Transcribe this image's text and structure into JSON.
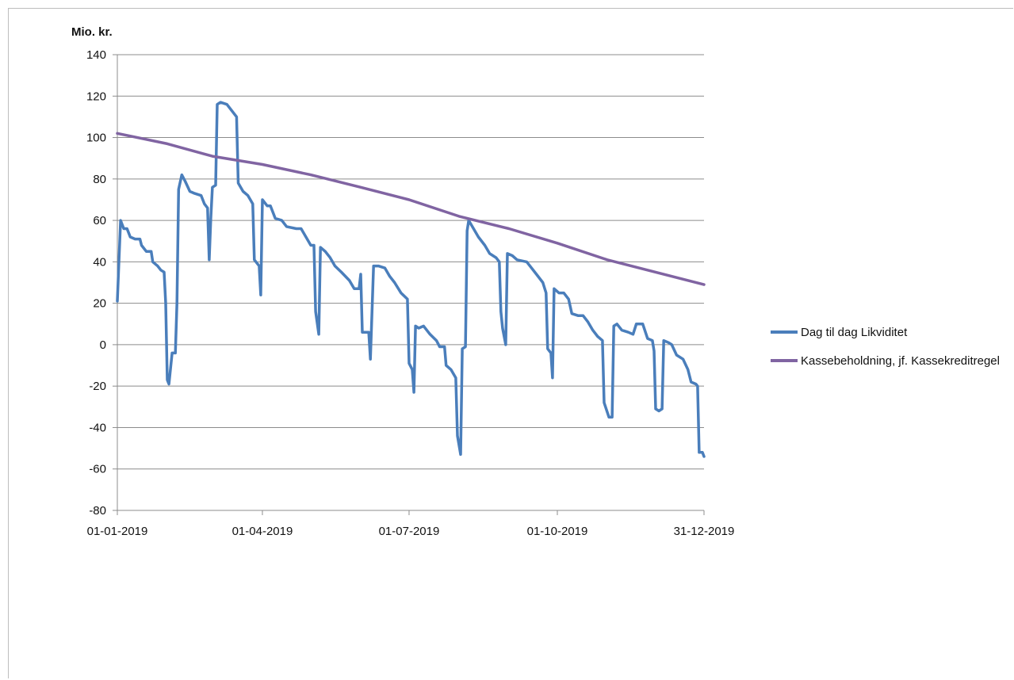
{
  "chart_data": {
    "type": "line",
    "title": "",
    "ylabel": "Mio. kr.",
    "xlabel": "",
    "ylim": [
      -80,
      140
    ],
    "yticks": [
      -80,
      -60,
      -40,
      -20,
      0,
      20,
      40,
      60,
      80,
      100,
      120,
      140
    ],
    "xlim": [
      "2019-01-01",
      "2019-12-31"
    ],
    "xticks": [
      {
        "date": "2019-01-01",
        "label": "01-01-2019"
      },
      {
        "date": "2019-04-01",
        "label": "01-04-2019"
      },
      {
        "date": "2019-07-01",
        "label": "01-07-2019"
      },
      {
        "date": "2019-10-01",
        "label": "01-10-2019"
      },
      {
        "date": "2019-12-31",
        "label": "31-12-2019"
      }
    ],
    "grid": "horizontal",
    "legend_position": "right",
    "series": [
      {
        "name": "Dag til dag Likviditet",
        "color": "#4a7ebb",
        "points": [
          [
            "2019-01-01",
            21
          ],
          [
            "2019-01-03",
            60
          ],
          [
            "2019-01-05",
            56
          ],
          [
            "2019-01-07",
            56
          ],
          [
            "2019-01-09",
            52
          ],
          [
            "2019-01-12",
            51
          ],
          [
            "2019-01-15",
            51
          ],
          [
            "2019-01-16",
            48
          ],
          [
            "2019-01-19",
            45
          ],
          [
            "2019-01-22",
            45
          ],
          [
            "2019-01-23",
            40
          ],
          [
            "2019-01-26",
            38
          ],
          [
            "2019-01-28",
            36
          ],
          [
            "2019-01-30",
            35
          ],
          [
            "2019-01-31",
            20
          ],
          [
            "2019-02-01",
            -17
          ],
          [
            "2019-02-02",
            -19
          ],
          [
            "2019-02-04",
            -4
          ],
          [
            "2019-02-06",
            -4
          ],
          [
            "2019-02-07",
            20
          ],
          [
            "2019-02-08",
            75
          ],
          [
            "2019-02-10",
            82
          ],
          [
            "2019-02-12",
            79
          ],
          [
            "2019-02-15",
            74
          ],
          [
            "2019-02-18",
            73
          ],
          [
            "2019-02-22",
            72
          ],
          [
            "2019-02-24",
            68
          ],
          [
            "2019-02-26",
            66
          ],
          [
            "2019-02-27",
            41
          ],
          [
            "2019-02-28",
            61
          ],
          [
            "2019-03-01",
            76
          ],
          [
            "2019-03-03",
            77
          ],
          [
            "2019-03-04",
            116
          ],
          [
            "2019-03-06",
            117
          ],
          [
            "2019-03-10",
            116
          ],
          [
            "2019-03-13",
            113
          ],
          [
            "2019-03-16",
            110
          ],
          [
            "2019-03-17",
            78
          ],
          [
            "2019-03-20",
            74
          ],
          [
            "2019-03-23",
            72
          ],
          [
            "2019-03-26",
            68
          ],
          [
            "2019-03-27",
            41
          ],
          [
            "2019-03-30",
            38
          ],
          [
            "2019-03-31",
            24
          ],
          [
            "2019-04-01",
            70
          ],
          [
            "2019-04-04",
            67
          ],
          [
            "2019-04-06",
            67
          ],
          [
            "2019-04-09",
            61
          ],
          [
            "2019-04-13",
            60
          ],
          [
            "2019-04-16",
            57
          ],
          [
            "2019-04-22",
            56
          ],
          [
            "2019-04-25",
            56
          ],
          [
            "2019-04-28",
            52
          ],
          [
            "2019-05-01",
            48
          ],
          [
            "2019-05-03",
            48
          ],
          [
            "2019-05-04",
            16
          ],
          [
            "2019-05-06",
            5
          ],
          [
            "2019-05-07",
            47
          ],
          [
            "2019-05-10",
            45
          ],
          [
            "2019-05-13",
            42
          ],
          [
            "2019-05-16",
            38
          ],
          [
            "2019-05-20",
            35
          ],
          [
            "2019-05-25",
            31
          ],
          [
            "2019-05-28",
            27
          ],
          [
            "2019-05-31",
            27
          ],
          [
            "2019-06-01",
            34
          ],
          [
            "2019-06-02",
            6
          ],
          [
            "2019-06-06",
            6
          ],
          [
            "2019-06-07",
            -7
          ],
          [
            "2019-06-09",
            38
          ],
          [
            "2019-06-12",
            38
          ],
          [
            "2019-06-16",
            37
          ],
          [
            "2019-06-19",
            33
          ],
          [
            "2019-06-22",
            30
          ],
          [
            "2019-06-26",
            25
          ],
          [
            "2019-06-30",
            22
          ],
          [
            "2019-07-01",
            -9
          ],
          [
            "2019-07-03",
            -12
          ],
          [
            "2019-07-04",
            -23
          ],
          [
            "2019-07-05",
            9
          ],
          [
            "2019-07-07",
            8
          ],
          [
            "2019-07-10",
            9
          ],
          [
            "2019-07-14",
            5
          ],
          [
            "2019-07-18",
            2
          ],
          [
            "2019-07-20",
            -1
          ],
          [
            "2019-07-23",
            -1
          ],
          [
            "2019-07-24",
            -10
          ],
          [
            "2019-07-27",
            -12
          ],
          [
            "2019-07-30",
            -16
          ],
          [
            "2019-07-31",
            -44
          ],
          [
            "2019-08-02",
            -53
          ],
          [
            "2019-08-03",
            -2
          ],
          [
            "2019-08-05",
            -1
          ],
          [
            "2019-08-06",
            55
          ],
          [
            "2019-08-07",
            60
          ],
          [
            "2019-08-10",
            56
          ],
          [
            "2019-08-13",
            52
          ],
          [
            "2019-08-17",
            48
          ],
          [
            "2019-08-20",
            44
          ],
          [
            "2019-08-24",
            42
          ],
          [
            "2019-08-26",
            40
          ],
          [
            "2019-08-27",
            16
          ],
          [
            "2019-08-28",
            8
          ],
          [
            "2019-08-30",
            0
          ],
          [
            "2019-08-31",
            44
          ],
          [
            "2019-09-03",
            43
          ],
          [
            "2019-09-06",
            41
          ],
          [
            "2019-09-12",
            40
          ],
          [
            "2019-09-15",
            37
          ],
          [
            "2019-09-18",
            34
          ],
          [
            "2019-09-22",
            30
          ],
          [
            "2019-09-24",
            25
          ],
          [
            "2019-09-25",
            -2
          ],
          [
            "2019-09-27",
            -4
          ],
          [
            "2019-09-28",
            -16
          ],
          [
            "2019-09-29",
            27
          ],
          [
            "2019-10-02",
            25
          ],
          [
            "2019-10-05",
            25
          ],
          [
            "2019-10-08",
            22
          ],
          [
            "2019-10-10",
            15
          ],
          [
            "2019-10-14",
            14
          ],
          [
            "2019-10-17",
            14
          ],
          [
            "2019-10-20",
            11
          ],
          [
            "2019-10-23",
            7
          ],
          [
            "2019-10-26",
            4
          ],
          [
            "2019-10-29",
            2
          ],
          [
            "2019-10-30",
            -28
          ],
          [
            "2019-11-02",
            -35
          ],
          [
            "2019-11-04",
            -35
          ],
          [
            "2019-11-05",
            9
          ],
          [
            "2019-11-07",
            10
          ],
          [
            "2019-11-10",
            7
          ],
          [
            "2019-11-14",
            6
          ],
          [
            "2019-11-17",
            5
          ],
          [
            "2019-11-19",
            10
          ],
          [
            "2019-11-23",
            10
          ],
          [
            "2019-11-26",
            3
          ],
          [
            "2019-11-29",
            2
          ],
          [
            "2019-11-30",
            -3
          ],
          [
            "2019-12-01",
            -31
          ],
          [
            "2019-12-03",
            -32
          ],
          [
            "2019-12-05",
            -31
          ],
          [
            "2019-12-06",
            2
          ],
          [
            "2019-12-09",
            1
          ],
          [
            "2019-12-11",
            0
          ],
          [
            "2019-12-14",
            -5
          ],
          [
            "2019-12-18",
            -7
          ],
          [
            "2019-12-21",
            -12
          ],
          [
            "2019-12-23",
            -18
          ],
          [
            "2019-12-26",
            -19
          ],
          [
            "2019-12-27",
            -20
          ],
          [
            "2019-12-28",
            -52
          ],
          [
            "2019-12-30",
            -52
          ],
          [
            "2019-12-31",
            -54
          ]
        ]
      },
      {
        "name": "Kassebeholdning, jf. Kassekreditregel",
        "color": "#8064a2",
        "points": [
          [
            "2019-01-01",
            102
          ],
          [
            "2019-02-01",
            97
          ],
          [
            "2019-03-01",
            91
          ],
          [
            "2019-04-01",
            87
          ],
          [
            "2019-05-01",
            82
          ],
          [
            "2019-06-01",
            76
          ],
          [
            "2019-07-01",
            70
          ],
          [
            "2019-08-01",
            62
          ],
          [
            "2019-09-01",
            56
          ],
          [
            "2019-10-01",
            49
          ],
          [
            "2019-11-01",
            41
          ],
          [
            "2019-12-01",
            35
          ],
          [
            "2019-12-31",
            29
          ]
        ]
      }
    ]
  }
}
